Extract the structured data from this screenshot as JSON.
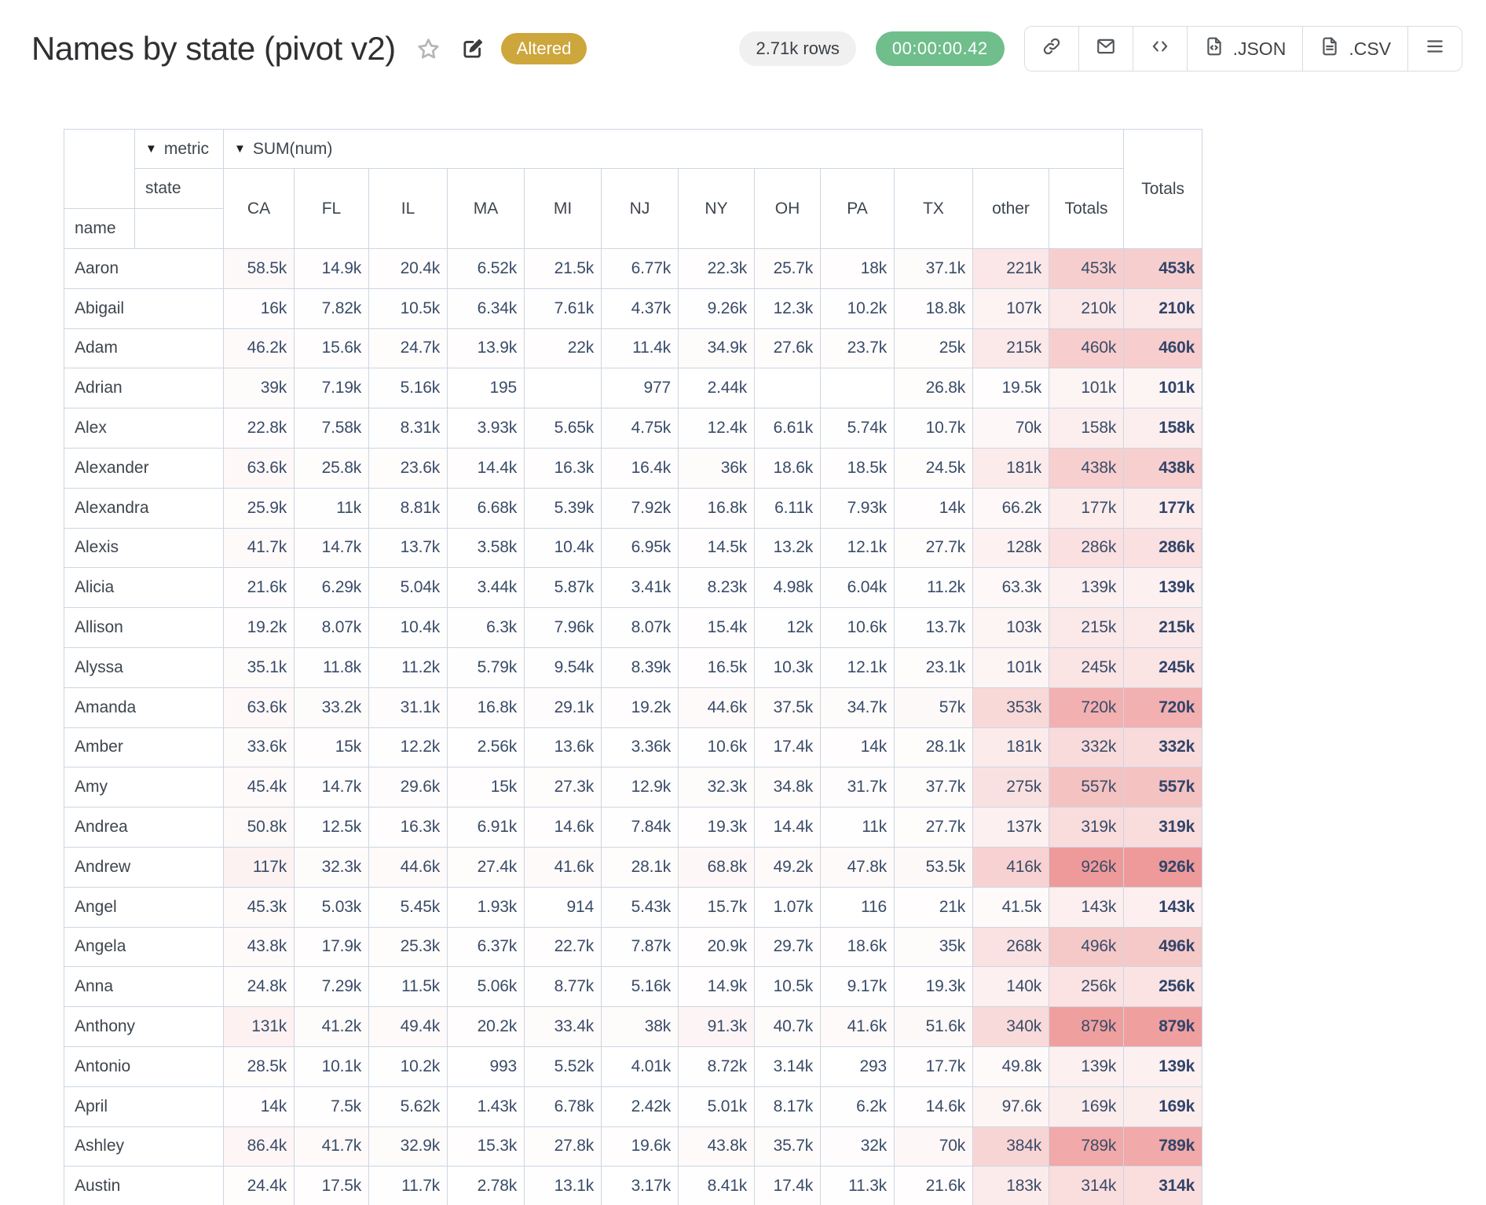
{
  "header": {
    "title": "Names by state (pivot v2)",
    "altered_label": "Altered",
    "row_count": "2.71k rows",
    "timer": "00:00:00.42",
    "toolbar": {
      "json_label": ".JSON",
      "csv_label": ".CSV"
    }
  },
  "colors": {
    "altered_badge": "#cda63c",
    "timer_badge": "#6fbe8b",
    "rows_badge_bg": "#f0f0f1",
    "heat_max": "#ef9a9a",
    "grid": "#ccd6e1",
    "number_text": "#3a4c68"
  },
  "pivot": {
    "collapse_icon": "▼",
    "metric_label": "metric",
    "metric_value": "SUM(num)",
    "dimension_label": "state",
    "row_dimension_label": "name",
    "col_totals_label": "Totals",
    "grand_totals_label": "Totals",
    "columns": [
      "CA",
      "FL",
      "IL",
      "MA",
      "MI",
      "NJ",
      "NY",
      "OH",
      "PA",
      "TX",
      "other",
      "Totals"
    ],
    "rows": [
      {
        "name": "Aaron",
        "values": [
          "58.5k",
          "14.9k",
          "20.4k",
          "6.52k",
          "21.5k",
          "6.77k",
          "22.3k",
          "25.7k",
          "18k",
          "37.1k",
          "221k",
          "453k"
        ],
        "total": "453k"
      },
      {
        "name": "Abigail",
        "values": [
          "16k",
          "7.82k",
          "10.5k",
          "6.34k",
          "7.61k",
          "4.37k",
          "9.26k",
          "12.3k",
          "10.2k",
          "18.8k",
          "107k",
          "210k"
        ],
        "total": "210k"
      },
      {
        "name": "Adam",
        "values": [
          "46.2k",
          "15.6k",
          "24.7k",
          "13.9k",
          "22k",
          "11.4k",
          "34.9k",
          "27.6k",
          "23.7k",
          "25k",
          "215k",
          "460k"
        ],
        "total": "460k"
      },
      {
        "name": "Adrian",
        "values": [
          "39k",
          "7.19k",
          "5.16k",
          "195",
          "",
          "977",
          "2.44k",
          "",
          "",
          "26.8k",
          "19.5k",
          "101k"
        ],
        "total": "101k"
      },
      {
        "name": "Alex",
        "values": [
          "22.8k",
          "7.58k",
          "8.31k",
          "3.93k",
          "5.65k",
          "4.75k",
          "12.4k",
          "6.61k",
          "5.74k",
          "10.7k",
          "70k",
          "158k"
        ],
        "total": "158k"
      },
      {
        "name": "Alexander",
        "values": [
          "63.6k",
          "25.8k",
          "23.6k",
          "14.4k",
          "16.3k",
          "16.4k",
          "36k",
          "18.6k",
          "18.5k",
          "24.5k",
          "181k",
          "438k"
        ],
        "total": "438k"
      },
      {
        "name": "Alexandra",
        "values": [
          "25.9k",
          "11k",
          "8.81k",
          "6.68k",
          "5.39k",
          "7.92k",
          "16.8k",
          "6.11k",
          "7.93k",
          "14k",
          "66.2k",
          "177k"
        ],
        "total": "177k"
      },
      {
        "name": "Alexis",
        "values": [
          "41.7k",
          "14.7k",
          "13.7k",
          "3.58k",
          "10.4k",
          "6.95k",
          "14.5k",
          "13.2k",
          "12.1k",
          "27.7k",
          "128k",
          "286k"
        ],
        "total": "286k"
      },
      {
        "name": "Alicia",
        "values": [
          "21.6k",
          "6.29k",
          "5.04k",
          "3.44k",
          "5.87k",
          "3.41k",
          "8.23k",
          "4.98k",
          "6.04k",
          "11.2k",
          "63.3k",
          "139k"
        ],
        "total": "139k"
      },
      {
        "name": "Allison",
        "values": [
          "19.2k",
          "8.07k",
          "10.4k",
          "6.3k",
          "7.96k",
          "8.07k",
          "15.4k",
          "12k",
          "10.6k",
          "13.7k",
          "103k",
          "215k"
        ],
        "total": "215k"
      },
      {
        "name": "Alyssa",
        "values": [
          "35.1k",
          "11.8k",
          "11.2k",
          "5.79k",
          "9.54k",
          "8.39k",
          "16.5k",
          "10.3k",
          "12.1k",
          "23.1k",
          "101k",
          "245k"
        ],
        "total": "245k"
      },
      {
        "name": "Amanda",
        "values": [
          "63.6k",
          "33.2k",
          "31.1k",
          "16.8k",
          "29.1k",
          "19.2k",
          "44.6k",
          "37.5k",
          "34.7k",
          "57k",
          "353k",
          "720k"
        ],
        "total": "720k"
      },
      {
        "name": "Amber",
        "values": [
          "33.6k",
          "15k",
          "12.2k",
          "2.56k",
          "13.6k",
          "3.36k",
          "10.6k",
          "17.4k",
          "14k",
          "28.1k",
          "181k",
          "332k"
        ],
        "total": "332k"
      },
      {
        "name": "Amy",
        "values": [
          "45.4k",
          "14.7k",
          "29.6k",
          "15k",
          "27.3k",
          "12.9k",
          "32.3k",
          "34.8k",
          "31.7k",
          "37.7k",
          "275k",
          "557k"
        ],
        "total": "557k"
      },
      {
        "name": "Andrea",
        "values": [
          "50.8k",
          "12.5k",
          "16.3k",
          "6.91k",
          "14.6k",
          "7.84k",
          "19.3k",
          "14.4k",
          "11k",
          "27.7k",
          "137k",
          "319k"
        ],
        "total": "319k"
      },
      {
        "name": "Andrew",
        "values": [
          "117k",
          "32.3k",
          "44.6k",
          "27.4k",
          "41.6k",
          "28.1k",
          "68.8k",
          "49.2k",
          "47.8k",
          "53.5k",
          "416k",
          "926k"
        ],
        "total": "926k"
      },
      {
        "name": "Angel",
        "values": [
          "45.3k",
          "5.03k",
          "5.45k",
          "1.93k",
          "914",
          "5.43k",
          "15.7k",
          "1.07k",
          "116",
          "21k",
          "41.5k",
          "143k"
        ],
        "total": "143k"
      },
      {
        "name": "Angela",
        "values": [
          "43.8k",
          "17.9k",
          "25.3k",
          "6.37k",
          "22.7k",
          "7.87k",
          "20.9k",
          "29.7k",
          "18.6k",
          "35k",
          "268k",
          "496k"
        ],
        "total": "496k"
      },
      {
        "name": "Anna",
        "values": [
          "24.8k",
          "7.29k",
          "11.5k",
          "5.06k",
          "8.77k",
          "5.16k",
          "14.9k",
          "10.5k",
          "9.17k",
          "19.3k",
          "140k",
          "256k"
        ],
        "total": "256k"
      },
      {
        "name": "Anthony",
        "values": [
          "131k",
          "41.2k",
          "49.4k",
          "20.2k",
          "33.4k",
          "38k",
          "91.3k",
          "40.7k",
          "41.6k",
          "51.6k",
          "340k",
          "879k"
        ],
        "total": "879k"
      },
      {
        "name": "Antonio",
        "values": [
          "28.5k",
          "10.1k",
          "10.2k",
          "993",
          "5.52k",
          "4.01k",
          "8.72k",
          "3.14k",
          "293",
          "17.7k",
          "49.8k",
          "139k"
        ],
        "total": "139k"
      },
      {
        "name": "April",
        "values": [
          "14k",
          "7.5k",
          "5.62k",
          "1.43k",
          "6.78k",
          "2.42k",
          "5.01k",
          "8.17k",
          "6.2k",
          "14.6k",
          "97.6k",
          "169k"
        ],
        "total": "169k"
      },
      {
        "name": "Ashley",
        "values": [
          "86.4k",
          "41.7k",
          "32.9k",
          "15.3k",
          "27.8k",
          "19.6k",
          "43.8k",
          "35.7k",
          "32k",
          "70k",
          "384k",
          "789k"
        ],
        "total": "789k"
      },
      {
        "name": "Austin",
        "values": [
          "24.4k",
          "17.5k",
          "11.7k",
          "2.78k",
          "13.1k",
          "3.17k",
          "8.41k",
          "17.4k",
          "11.3k",
          "21.6k",
          "183k",
          "314k"
        ],
        "total": "314k"
      }
    ]
  }
}
